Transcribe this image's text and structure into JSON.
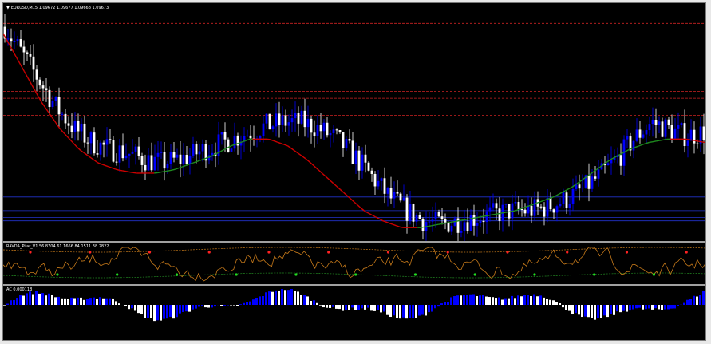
{
  "colors": {
    "background": "#000000",
    "bull_candle": "#0000ff",
    "bear_candle": "#ffffff",
    "ma_down": "#cc0000",
    "ma_up": "#1e8a1e",
    "resistance": "#cc2222",
    "support": "#2233cc",
    "osc_line": "#c77a1a",
    "osc_band_upper": "#c77a1a",
    "osc_band_lower": "#228822",
    "osc_signal_top": "#ff2222",
    "osc_signal_bottom": "#22dd22",
    "ac_up": "#0000ff",
    "ac_down": "#ffffff"
  },
  "main": {
    "header_arrow": "▼",
    "header": "EURUSD,M15  1.09672 1.09677 1.09668 1.09673"
  },
  "oscillator": {
    "header": "RAVDA_Pilar_V1 56.8704 61.1666 84.1511 38.2822"
  },
  "ac": {
    "header": "AC 0.000118"
  },
  "chart_data": [
    {
      "type": "candlestick",
      "symbol": "EURUSD",
      "timeframe": "M15",
      "ohlc_label": [
        "1.09672",
        "1.09677",
        "1.09668",
        "1.09673"
      ],
      "close_path": [
        1.099,
        1.0982,
        1.0974,
        1.0966,
        1.096,
        1.0956,
        1.0954,
        1.0953,
        1.0951,
        1.095,
        1.0951,
        1.0953,
        1.0955,
        1.0957,
        1.0959,
        1.0961,
        1.0962,
        1.0962,
        1.096,
        1.0957,
        1.0952,
        1.0946,
        1.094,
        1.0936,
        1.0933,
        1.0932,
        1.0933,
        1.0934,
        1.0935,
        1.0936,
        1.0936,
        1.0937,
        1.0939,
        1.0942,
        1.0946,
        1.0951,
        1.0957,
        1.0962,
        1.096,
        1.0958,
        1.0959
      ],
      "moving_average_shape": [
        1.0988,
        1.0978,
        1.0968,
        1.096,
        1.0954,
        1.095,
        1.0948,
        1.0947,
        1.0947,
        1.0948,
        1.095,
        1.0952,
        1.0955,
        1.0957,
        1.0957,
        1.0955,
        1.0951,
        1.0946,
        1.0941,
        1.0936,
        1.0933,
        1.0931,
        1.0931,
        1.0932,
        1.0933,
        1.0934,
        1.0935,
        1.0936,
        1.0938,
        1.094,
        1.0943,
        1.0947,
        1.0951,
        1.0954,
        1.0956,
        1.0957,
        1.0957,
        1.0956
      ],
      "y_range": [
        1.0928,
        1.0996
      ],
      "resistance_levels": [
        1.0991,
        1.0971,
        1.0969,
        1.0964
      ],
      "support_levels": [
        1.094,
        1.0936,
        1.0934,
        1.0933
      ],
      "grid": false
    },
    {
      "type": "line",
      "name": "RAVDA_Pilar_V1",
      "values": [
        56.8704,
        61.1666,
        84.1511,
        38.2822
      ]
    },
    {
      "type": "bar",
      "name": "AC",
      "values": [
        0.000118
      ]
    }
  ]
}
